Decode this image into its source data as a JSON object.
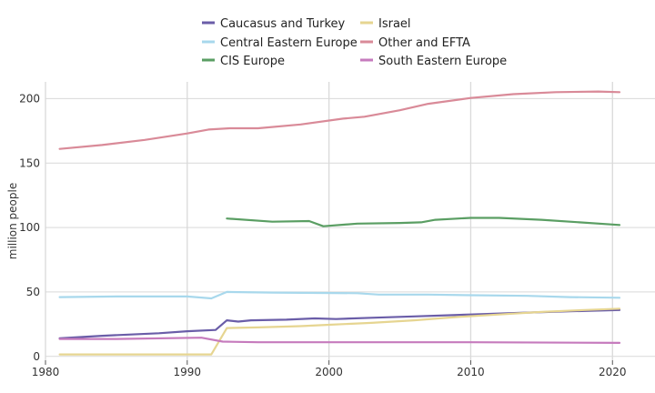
{
  "chart_data": {
    "type": "line",
    "title": "",
    "xlabel": "",
    "ylabel": "million people",
    "xlim": [
      1980,
      2023
    ],
    "ylim": [
      -3,
      213
    ],
    "xticks": [
      1980,
      1990,
      2000,
      2010,
      2020
    ],
    "yticks": [
      0,
      50,
      100,
      150,
      200
    ],
    "grid": true,
    "legend_position": "top",
    "series": [
      {
        "name": "Caucasus and Turkey",
        "color": "#6a5da8",
        "points": [
          [
            1981,
            14
          ],
          [
            1984,
            16
          ],
          [
            1988,
            18
          ],
          [
            1990,
            19.5
          ],
          [
            1992,
            20.5
          ],
          [
            1992.8,
            28
          ],
          [
            1993.6,
            27
          ],
          [
            1994.5,
            28
          ],
          [
            1997,
            28.5
          ],
          [
            1999,
            29.5
          ],
          [
            2000.5,
            29
          ],
          [
            2003,
            30
          ],
          [
            2006,
            31
          ],
          [
            2010,
            32.5
          ],
          [
            2014,
            34
          ],
          [
            2017,
            35
          ],
          [
            2020.5,
            36
          ]
        ]
      },
      {
        "name": "Central Eastern Europe",
        "color": "#a8d8ec",
        "points": [
          [
            1981,
            46
          ],
          [
            1985,
            46.5
          ],
          [
            1990,
            46.5
          ],
          [
            1991.7,
            45
          ],
          [
            1992.8,
            50
          ],
          [
            1996,
            49.5
          ],
          [
            2002,
            49
          ],
          [
            2003.5,
            48
          ],
          [
            2007,
            48
          ],
          [
            2010,
            47.5
          ],
          [
            2014,
            47
          ],
          [
            2017,
            46
          ],
          [
            2020.5,
            45.5
          ]
        ]
      },
      {
        "name": "CIS Europe",
        "color": "#5a9e63",
        "points": [
          [
            1992.8,
            107
          ],
          [
            1996,
            104.5
          ],
          [
            1998.6,
            105
          ],
          [
            1999.6,
            101
          ],
          [
            2002,
            103
          ],
          [
            2005,
            103.5
          ],
          [
            2006.5,
            104
          ],
          [
            2007.5,
            106
          ],
          [
            2010,
            107.5
          ],
          [
            2012,
            107.5
          ],
          [
            2015,
            106
          ],
          [
            2020.5,
            102
          ]
        ]
      },
      {
        "name": "Israel",
        "color": "#e6d591",
        "points": [
          [
            1981,
            1.5
          ],
          [
            1991.7,
            1.5
          ],
          [
            1992.8,
            22
          ],
          [
            1995,
            22.5
          ],
          [
            1998,
            23.5
          ],
          [
            2000,
            24.5
          ],
          [
            2003,
            26
          ],
          [
            2006,
            28
          ],
          [
            2009,
            30.5
          ],
          [
            2012,
            32.5
          ],
          [
            2015,
            34.5
          ],
          [
            2018,
            36
          ],
          [
            2020.5,
            37
          ]
        ]
      },
      {
        "name": "Other and EFTA",
        "color": "#d98a98",
        "points": [
          [
            1981,
            161
          ],
          [
            1984,
            164
          ],
          [
            1987,
            168
          ],
          [
            1990,
            173
          ],
          [
            1991.5,
            176
          ],
          [
            1993,
            177
          ],
          [
            1995,
            177
          ],
          [
            1998,
            180
          ],
          [
            2001,
            184.5
          ],
          [
            2002.5,
            186
          ],
          [
            2005,
            191
          ],
          [
            2007,
            196
          ],
          [
            2010,
            200.5
          ],
          [
            2013,
            203.5
          ],
          [
            2016,
            205
          ],
          [
            2019,
            205.5
          ],
          [
            2020.5,
            205
          ]
        ]
      },
      {
        "name": "South Eastern Europe",
        "color": "#c67bbd",
        "points": [
          [
            1981,
            13.5
          ],
          [
            1985,
            13.5
          ],
          [
            1991,
            14.5
          ],
          [
            1992.5,
            11.5
          ],
          [
            1995,
            11
          ],
          [
            2000,
            11
          ],
          [
            2010,
            11
          ],
          [
            2020.5,
            10.5
          ]
        ]
      }
    ]
  }
}
